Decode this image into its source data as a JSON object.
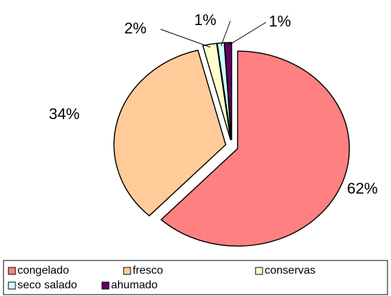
{
  "chart_data": {
    "type": "pie",
    "categories": [
      "congelado",
      "fresco",
      "conservas",
      "seco salado",
      "ahumado"
    ],
    "values": [
      62,
      34,
      2,
      1,
      1
    ],
    "value_labels": [
      "62%",
      "34%",
      "2%",
      "1%",
      "1%"
    ],
    "colors": [
      "#FF8080",
      "#FFCC99",
      "#FFFFCC",
      "#CCFFFF",
      "#660066"
    ],
    "legend": "bottom"
  }
}
